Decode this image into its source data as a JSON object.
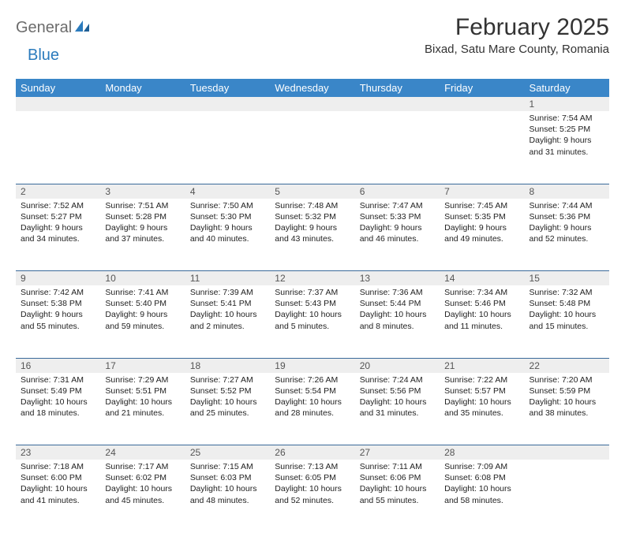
{
  "logo": {
    "word1": "General",
    "word2": "Blue"
  },
  "title": "February 2025",
  "subtitle": "Bixad, Satu Mare County, Romania",
  "colors": {
    "header_bg": "#3a86c8",
    "header_fg": "#ffffff",
    "row_divider": "#3a6a9a",
    "daynum_bg": "#eeeeee",
    "logo_gray": "#6c6c6c",
    "logo_blue": "#2b7bbd",
    "text": "#222222"
  },
  "fonts": {
    "title_size_pt": 30,
    "subtitle_size_pt": 15,
    "header_size_pt": 13,
    "body_size_pt": 10.5
  },
  "weekdays": [
    "Sunday",
    "Monday",
    "Tuesday",
    "Wednesday",
    "Thursday",
    "Friday",
    "Saturday"
  ],
  "weeks": [
    [
      null,
      null,
      null,
      null,
      null,
      null,
      {
        "n": "1",
        "sunrise": "Sunrise: 7:54 AM",
        "sunset": "Sunset: 5:25 PM",
        "daylight": "Daylight: 9 hours and 31 minutes."
      }
    ],
    [
      {
        "n": "2",
        "sunrise": "Sunrise: 7:52 AM",
        "sunset": "Sunset: 5:27 PM",
        "daylight": "Daylight: 9 hours and 34 minutes."
      },
      {
        "n": "3",
        "sunrise": "Sunrise: 7:51 AM",
        "sunset": "Sunset: 5:28 PM",
        "daylight": "Daylight: 9 hours and 37 minutes."
      },
      {
        "n": "4",
        "sunrise": "Sunrise: 7:50 AM",
        "sunset": "Sunset: 5:30 PM",
        "daylight": "Daylight: 9 hours and 40 minutes."
      },
      {
        "n": "5",
        "sunrise": "Sunrise: 7:48 AM",
        "sunset": "Sunset: 5:32 PM",
        "daylight": "Daylight: 9 hours and 43 minutes."
      },
      {
        "n": "6",
        "sunrise": "Sunrise: 7:47 AM",
        "sunset": "Sunset: 5:33 PM",
        "daylight": "Daylight: 9 hours and 46 minutes."
      },
      {
        "n": "7",
        "sunrise": "Sunrise: 7:45 AM",
        "sunset": "Sunset: 5:35 PM",
        "daylight": "Daylight: 9 hours and 49 minutes."
      },
      {
        "n": "8",
        "sunrise": "Sunrise: 7:44 AM",
        "sunset": "Sunset: 5:36 PM",
        "daylight": "Daylight: 9 hours and 52 minutes."
      }
    ],
    [
      {
        "n": "9",
        "sunrise": "Sunrise: 7:42 AM",
        "sunset": "Sunset: 5:38 PM",
        "daylight": "Daylight: 9 hours and 55 minutes."
      },
      {
        "n": "10",
        "sunrise": "Sunrise: 7:41 AM",
        "sunset": "Sunset: 5:40 PM",
        "daylight": "Daylight: 9 hours and 59 minutes."
      },
      {
        "n": "11",
        "sunrise": "Sunrise: 7:39 AM",
        "sunset": "Sunset: 5:41 PM",
        "daylight": "Daylight: 10 hours and 2 minutes."
      },
      {
        "n": "12",
        "sunrise": "Sunrise: 7:37 AM",
        "sunset": "Sunset: 5:43 PM",
        "daylight": "Daylight: 10 hours and 5 minutes."
      },
      {
        "n": "13",
        "sunrise": "Sunrise: 7:36 AM",
        "sunset": "Sunset: 5:44 PM",
        "daylight": "Daylight: 10 hours and 8 minutes."
      },
      {
        "n": "14",
        "sunrise": "Sunrise: 7:34 AM",
        "sunset": "Sunset: 5:46 PM",
        "daylight": "Daylight: 10 hours and 11 minutes."
      },
      {
        "n": "15",
        "sunrise": "Sunrise: 7:32 AM",
        "sunset": "Sunset: 5:48 PM",
        "daylight": "Daylight: 10 hours and 15 minutes."
      }
    ],
    [
      {
        "n": "16",
        "sunrise": "Sunrise: 7:31 AM",
        "sunset": "Sunset: 5:49 PM",
        "daylight": "Daylight: 10 hours and 18 minutes."
      },
      {
        "n": "17",
        "sunrise": "Sunrise: 7:29 AM",
        "sunset": "Sunset: 5:51 PM",
        "daylight": "Daylight: 10 hours and 21 minutes."
      },
      {
        "n": "18",
        "sunrise": "Sunrise: 7:27 AM",
        "sunset": "Sunset: 5:52 PM",
        "daylight": "Daylight: 10 hours and 25 minutes."
      },
      {
        "n": "19",
        "sunrise": "Sunrise: 7:26 AM",
        "sunset": "Sunset: 5:54 PM",
        "daylight": "Daylight: 10 hours and 28 minutes."
      },
      {
        "n": "20",
        "sunrise": "Sunrise: 7:24 AM",
        "sunset": "Sunset: 5:56 PM",
        "daylight": "Daylight: 10 hours and 31 minutes."
      },
      {
        "n": "21",
        "sunrise": "Sunrise: 7:22 AM",
        "sunset": "Sunset: 5:57 PM",
        "daylight": "Daylight: 10 hours and 35 minutes."
      },
      {
        "n": "22",
        "sunrise": "Sunrise: 7:20 AM",
        "sunset": "Sunset: 5:59 PM",
        "daylight": "Daylight: 10 hours and 38 minutes."
      }
    ],
    [
      {
        "n": "23",
        "sunrise": "Sunrise: 7:18 AM",
        "sunset": "Sunset: 6:00 PM",
        "daylight": "Daylight: 10 hours and 41 minutes."
      },
      {
        "n": "24",
        "sunrise": "Sunrise: 7:17 AM",
        "sunset": "Sunset: 6:02 PM",
        "daylight": "Daylight: 10 hours and 45 minutes."
      },
      {
        "n": "25",
        "sunrise": "Sunrise: 7:15 AM",
        "sunset": "Sunset: 6:03 PM",
        "daylight": "Daylight: 10 hours and 48 minutes."
      },
      {
        "n": "26",
        "sunrise": "Sunrise: 7:13 AM",
        "sunset": "Sunset: 6:05 PM",
        "daylight": "Daylight: 10 hours and 52 minutes."
      },
      {
        "n": "27",
        "sunrise": "Sunrise: 7:11 AM",
        "sunset": "Sunset: 6:06 PM",
        "daylight": "Daylight: 10 hours and 55 minutes."
      },
      {
        "n": "28",
        "sunrise": "Sunrise: 7:09 AM",
        "sunset": "Sunset: 6:08 PM",
        "daylight": "Daylight: 10 hours and 58 minutes."
      },
      null
    ]
  ]
}
